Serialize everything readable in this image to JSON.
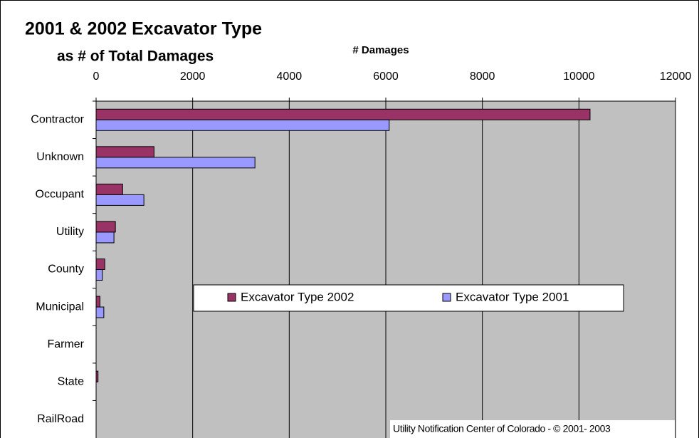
{
  "chart_data": {
    "type": "hbar",
    "title": "2001 & 2002 Excavator Type",
    "subtitle": "as # of Total Damages",
    "x_label": "# Damages",
    "note": "Utility Notification Center of Colorado - © 2001- 2003",
    "categories": [
      "Contractor",
      "Unknown",
      "Occupant",
      "Utility",
      "County",
      "Municipal",
      "Farmer",
      "State",
      "RailRoad"
    ],
    "series": [
      {
        "name": "Excavator Type 2002",
        "color": "#993366",
        "values": [
          10230,
          1200,
          550,
          400,
          180,
          80,
          0,
          40,
          0
        ]
      },
      {
        "name": "Excavator Type 2001",
        "color": "#9999ff",
        "values": [
          6070,
          3290,
          990,
          370,
          130,
          160,
          0,
          0,
          0
        ]
      }
    ],
    "xlim": [
      0,
      12000
    ],
    "xticks": [
      0,
      2000,
      4000,
      6000,
      8000,
      10000,
      12000
    ],
    "grid": true,
    "plot_background": "#c0c0c0"
  }
}
